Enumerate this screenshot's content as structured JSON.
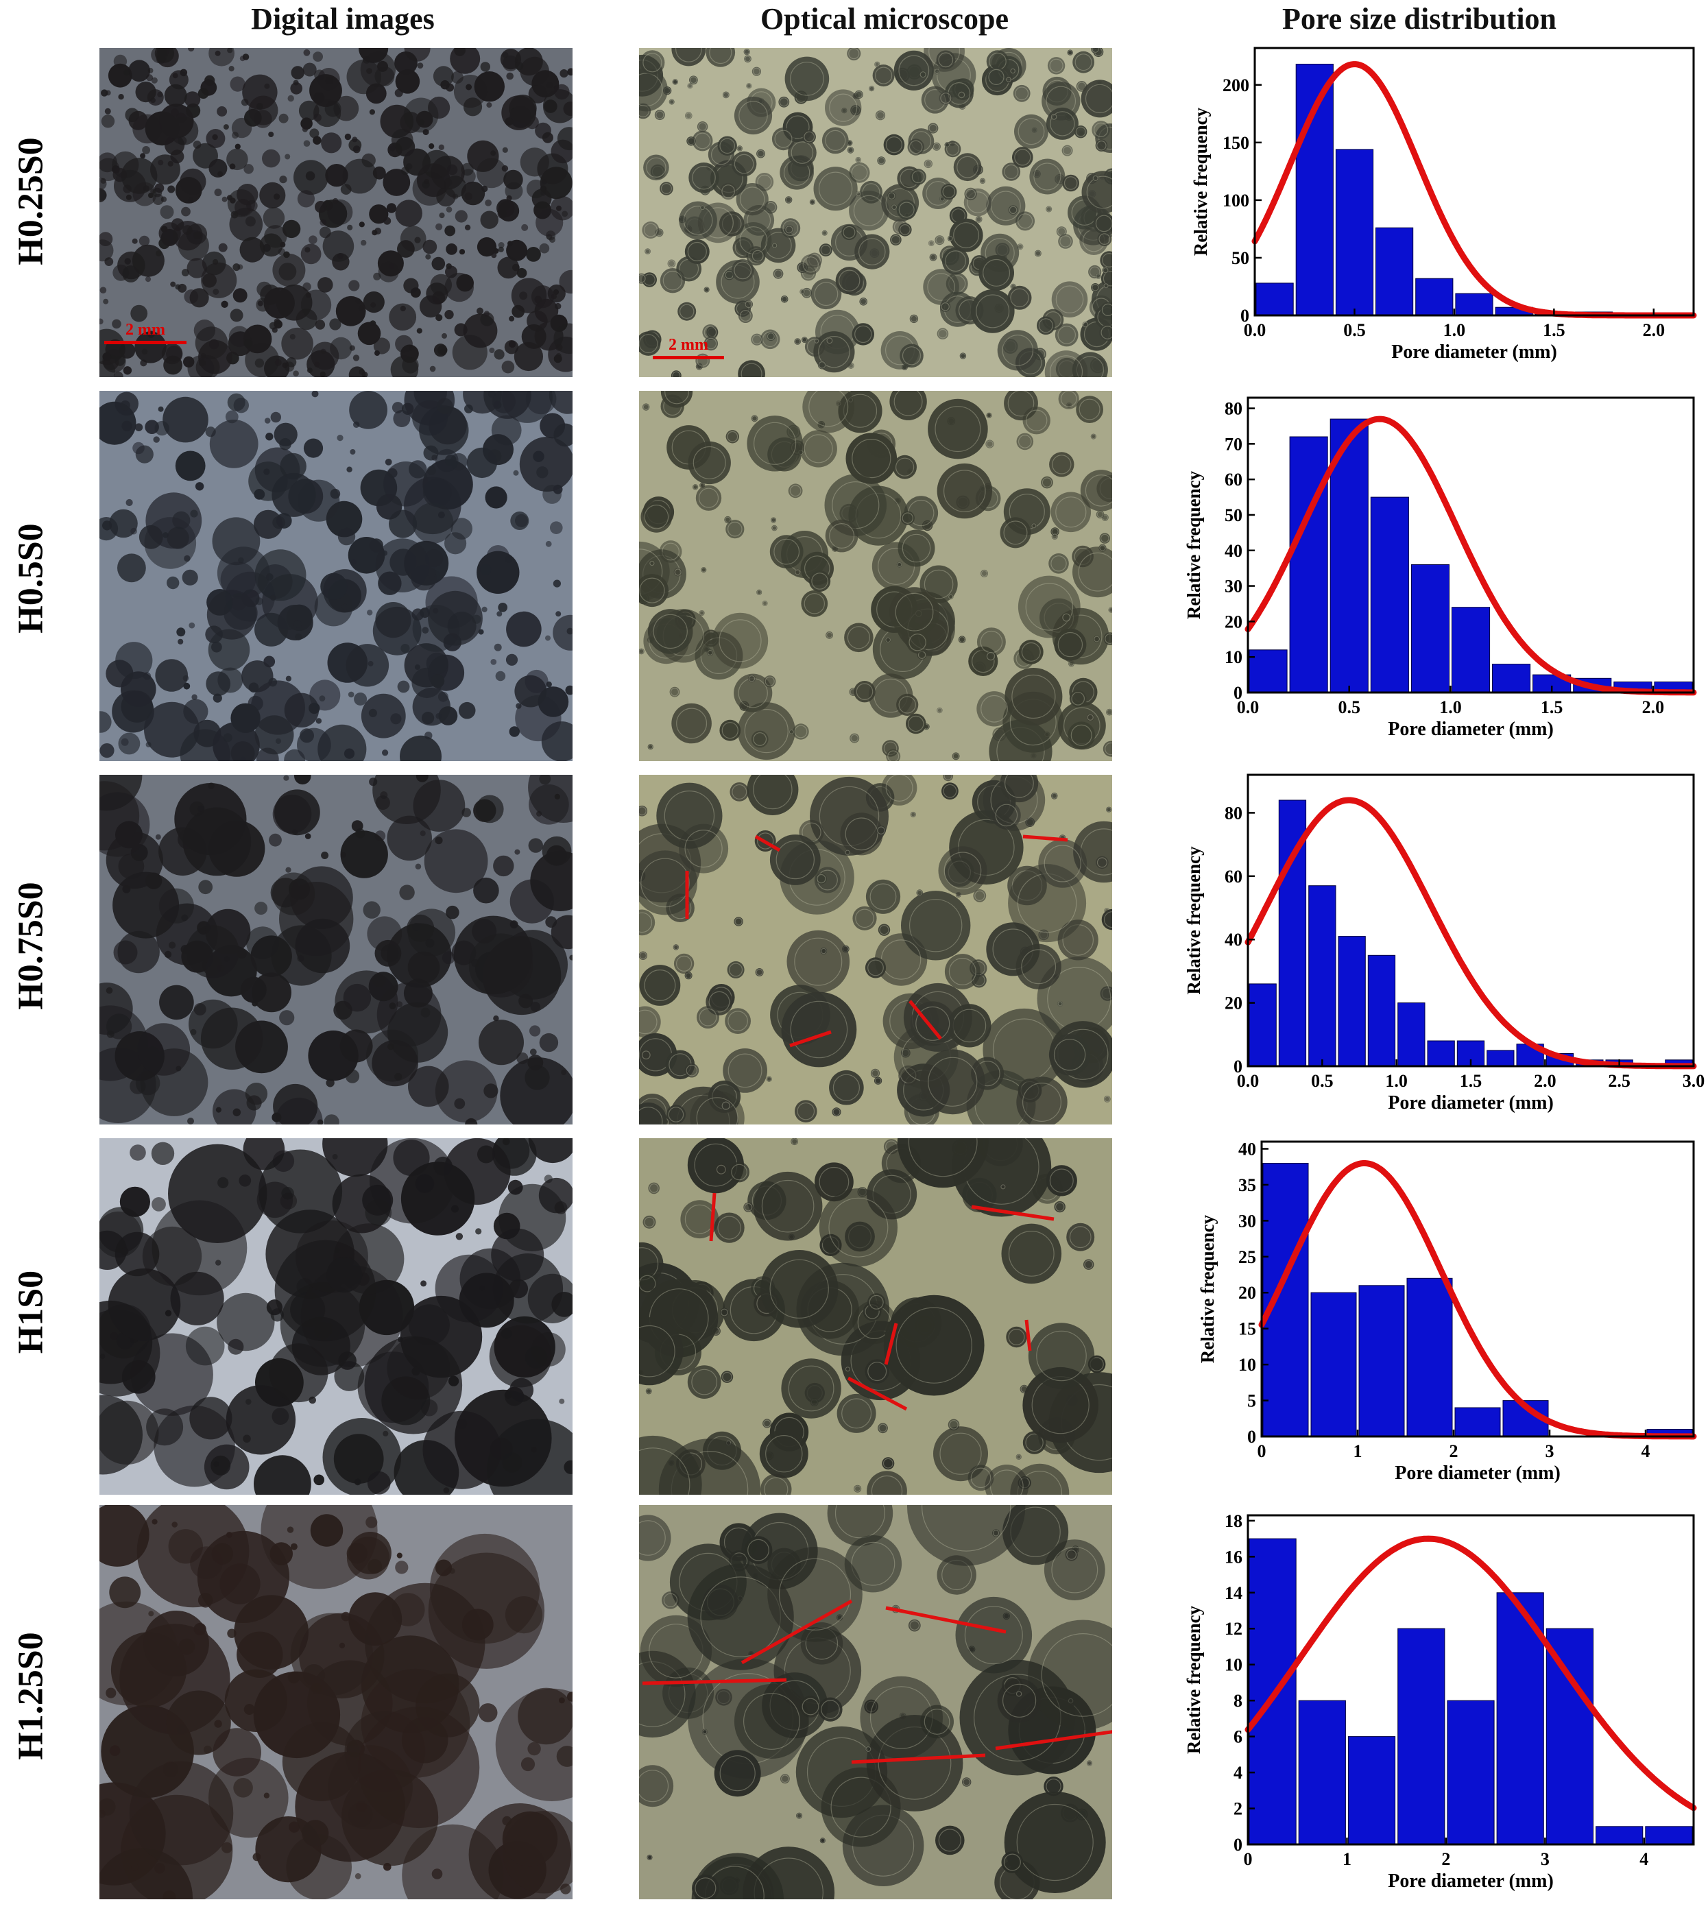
{
  "headers": {
    "col1": "Digital images",
    "col2": "Optical microscope",
    "col3": "Pore size distribution"
  },
  "scale_bar_label": "2 mm",
  "colors": {
    "bar": "#0a10d0",
    "fit": "#e01010",
    "annotation": "#e01010"
  },
  "rows": [
    {
      "label": "H0.25S0",
      "photo_tone": [
        "#6a6f78",
        "#1e1c1e"
      ],
      "micro_tone": [
        "#b4b498",
        "#3a3d34"
      ],
      "has_scale": true
    },
    {
      "label": "H0.5S0",
      "photo_tone": [
        "#7d8796",
        "#22252c"
      ],
      "micro_tone": [
        "#a8a88a",
        "#3a3c30"
      ],
      "has_scale": false
    },
    {
      "label": "H0.75S0",
      "photo_tone": [
        "#707680",
        "#1d1c1e"
      ],
      "micro_tone": [
        "#aaa986",
        "#34362e"
      ],
      "has_scale": false
    },
    {
      "label": "H1S0",
      "photo_tone": [
        "#b8bec8",
        "#1a191b"
      ],
      "micro_tone": [
        "#a0a080",
        "#2e3028"
      ],
      "has_scale": false
    },
    {
      "label": "H1.25S0",
      "photo_tone": [
        "#8a8d95",
        "#2a1f1c"
      ],
      "micro_tone": [
        "#9a9a80",
        "#2a2c26"
      ],
      "has_scale": false
    }
  ],
  "chart_data": [
    {
      "type": "bar",
      "label": "H0.25S0",
      "xlabel": "Pore diameter (mm)",
      "ylabel": "Relative frequency",
      "xlim": [
        0,
        2.2
      ],
      "ylim": [
        0,
        232
      ],
      "xticks": [
        0.0,
        0.5,
        1.0,
        1.5,
        2.0
      ],
      "xtick_labels": [
        "0.0",
        "0.5",
        "1.0",
        "1.5",
        "2.0"
      ],
      "yticks": [
        0,
        50,
        100,
        150,
        200
      ],
      "ytick_labels": [
        "0",
        "50",
        "100",
        "150",
        "200"
      ],
      "bin_width": 0.2,
      "x": [
        0.1,
        0.3,
        0.5,
        0.7,
        0.9,
        1.1,
        1.3,
        1.5,
        1.7,
        1.9,
        2.1
      ],
      "values": [
        28,
        218,
        144,
        76,
        32,
        19,
        7,
        3,
        3,
        0,
        2
      ],
      "fit": {
        "type": "gaussian",
        "peak": 218,
        "mean": 0.5,
        "sd": 0.32
      }
    },
    {
      "type": "bar",
      "label": "H0.5S0",
      "xlabel": "Pore diameter (mm)",
      "ylabel": "Relative frequency",
      "xlim": [
        0,
        2.2
      ],
      "ylim": [
        0,
        83
      ],
      "xticks": [
        0.0,
        0.5,
        1.0,
        1.5,
        2.0
      ],
      "xtick_labels": [
        "0.0",
        "0.5",
        "1.0",
        "1.5",
        "2.0"
      ],
      "yticks": [
        0,
        10,
        20,
        30,
        40,
        50,
        60,
        70,
        80
      ],
      "ytick_labels": [
        "0",
        "10",
        "20",
        "30",
        "40",
        "50",
        "60",
        "70",
        "80"
      ],
      "bin_width": 0.2,
      "x": [
        0.1,
        0.3,
        0.5,
        0.7,
        0.9,
        1.1,
        1.3,
        1.5,
        1.7,
        1.9,
        2.1
      ],
      "values": [
        12,
        72,
        77,
        55,
        36,
        24,
        8,
        5,
        4,
        3,
        3
      ],
      "fit": {
        "type": "gaussian",
        "peak": 77,
        "mean": 0.65,
        "sd": 0.38
      }
    },
    {
      "type": "bar",
      "label": "H0.75S0",
      "xlabel": "Pore diameter (mm)",
      "ylabel": "Relative frequency",
      "xlim": [
        0,
        3.0
      ],
      "ylim": [
        0,
        92
      ],
      "xticks": [
        0.0,
        0.5,
        1.0,
        1.5,
        2.0,
        2.5,
        3.0
      ],
      "xtick_labels": [
        "0.0",
        "0.5",
        "1.0",
        "1.5",
        "2.0",
        "2.5",
        "3.0"
      ],
      "yticks": [
        0,
        20,
        40,
        60,
        80
      ],
      "ytick_labels": [
        "0",
        "20",
        "40",
        "60",
        "80"
      ],
      "bin_width": 0.2,
      "x": [
        0.1,
        0.3,
        0.5,
        0.7,
        0.9,
        1.1,
        1.3,
        1.5,
        1.7,
        1.9,
        2.1,
        2.3,
        2.5,
        2.7,
        2.9
      ],
      "values": [
        26,
        84,
        57,
        41,
        35,
        20,
        8,
        8,
        5,
        7,
        4,
        2,
        2,
        0,
        2
      ],
      "fit": {
        "type": "gaussian",
        "peak": 84,
        "mean": 0.68,
        "sd": 0.55
      }
    },
    {
      "type": "bar",
      "label": "H1S0",
      "xlabel": "Pore diameter (mm)",
      "ylabel": "Relative frequency",
      "xlim": [
        0,
        4.5
      ],
      "ylim": [
        0,
        41
      ],
      "xticks": [
        0,
        1,
        2,
        3,
        4
      ],
      "xtick_labels": [
        "0",
        "1",
        "2",
        "3",
        "4"
      ],
      "yticks": [
        0,
        5,
        10,
        15,
        20,
        25,
        30,
        35,
        40
      ],
      "ytick_labels": [
        "0",
        "5",
        "10",
        "15",
        "20",
        "25",
        "30",
        "35",
        "40"
      ],
      "bin_width": 0.5,
      "x": [
        0.25,
        0.75,
        1.25,
        1.75,
        2.25,
        2.75,
        3.25,
        3.75,
        4.25
      ],
      "values": [
        38,
        20,
        21,
        22,
        4,
        5,
        0,
        0,
        1
      ],
      "fit": {
        "type": "gaussian",
        "peak": 38,
        "mean": 1.07,
        "sd": 0.8
      }
    },
    {
      "type": "bar",
      "label": "H1.25S0",
      "xlabel": "Pore diameter (mm)",
      "ylabel": "Relative frequency",
      "xlim": [
        0,
        4.5
      ],
      "ylim": [
        0,
        18.3
      ],
      "xticks": [
        0,
        1,
        2,
        3,
        4
      ],
      "xtick_labels": [
        "0",
        "1",
        "2",
        "3",
        "4"
      ],
      "yticks": [
        0,
        2,
        4,
        6,
        8,
        10,
        12,
        14,
        16,
        18
      ],
      "ytick_labels": [
        "0",
        "2",
        "4",
        "6",
        "8",
        "10",
        "12",
        "14",
        "16",
        "18"
      ],
      "bin_width": 0.5,
      "x": [
        0.25,
        0.75,
        1.25,
        1.75,
        2.25,
        2.75,
        3.25,
        3.75,
        4.25
      ],
      "values": [
        17,
        8,
        6,
        12,
        8,
        14,
        12,
        1,
        1
      ],
      "fit": {
        "type": "gaussian",
        "peak": 17,
        "mean": 1.82,
        "sd": 1.3
      }
    }
  ]
}
